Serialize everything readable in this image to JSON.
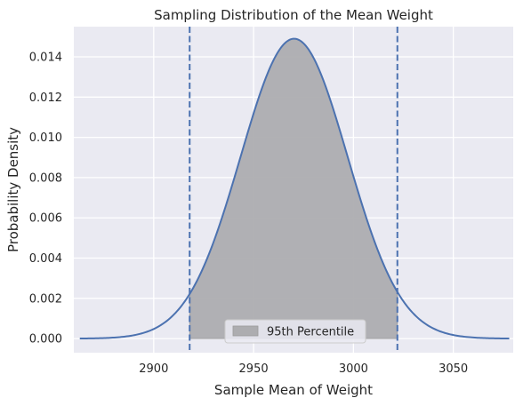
{
  "chart_data": {
    "type": "area",
    "title": "Sampling Distribution of the Mean Weight",
    "xlabel": "Sample Mean of Weight",
    "ylabel": "Probability Density",
    "xlim": [
      2860,
      3080
    ],
    "ylim": [
      -0.0007,
      0.0155
    ],
    "x_ticks": [
      2900,
      2950,
      3000,
      3050
    ],
    "y_ticks": [
      0.0,
      0.002,
      0.004,
      0.006,
      0.008,
      0.01,
      0.012,
      0.014
    ],
    "x_tick_labels": [
      "2900",
      "2950",
      "3000",
      "3050"
    ],
    "y_tick_labels": [
      "0.000",
      "0.002",
      "0.004",
      "0.006",
      "0.008",
      "0.010",
      "0.012",
      "0.014"
    ],
    "grid": true,
    "curve": {
      "distribution": "normal",
      "mean": 2970.3,
      "std": 26.8,
      "x_range": [
        2863,
        3078
      ],
      "peak_density": 0.0149
    },
    "shaded_region": {
      "x_from": 2918,
      "x_to": 3022,
      "label": "95th Percentile"
    },
    "vlines": [
      2918,
      3022
    ],
    "legend": {
      "position": "lower center",
      "entries": [
        "95th Percentile"
      ]
    },
    "colors": {
      "background": "#eaeaf2",
      "grid": "#ffffff",
      "line": "#4c72b0",
      "fill": "#adadb0",
      "fill_edge": "#9a9a9a"
    }
  }
}
